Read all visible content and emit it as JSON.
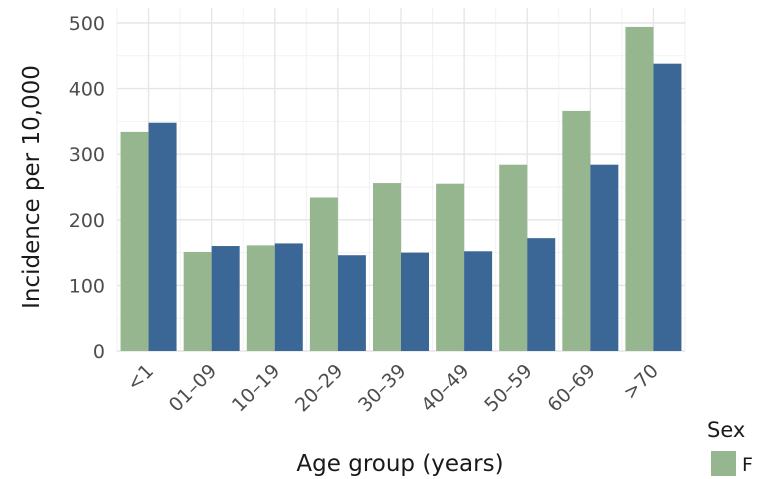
{
  "chart_data": {
    "type": "bar",
    "xlabel": "Age group (years)",
    "ylabel": "Incidence per 10,000",
    "categories": [
      "<1",
      "01–09",
      "10–19",
      "20–29",
      "30–39",
      "40–49",
      "50–59",
      "60–69",
      ">70"
    ],
    "series": [
      {
        "name": "F",
        "color": "#96b68f",
        "values": [
          334,
          151,
          161,
          234,
          256,
          255,
          284,
          366,
          494
        ]
      },
      {
        "color": "#3a6795",
        "values": [
          348,
          160,
          164,
          146,
          150,
          152,
          172,
          284,
          438
        ]
      }
    ],
    "ylim": [
      0,
      500
    ],
    "yticks": [
      0,
      100,
      200,
      300,
      400,
      500
    ],
    "grid": true,
    "legend": {
      "title": "Sex",
      "position": "bottom-right"
    }
  }
}
